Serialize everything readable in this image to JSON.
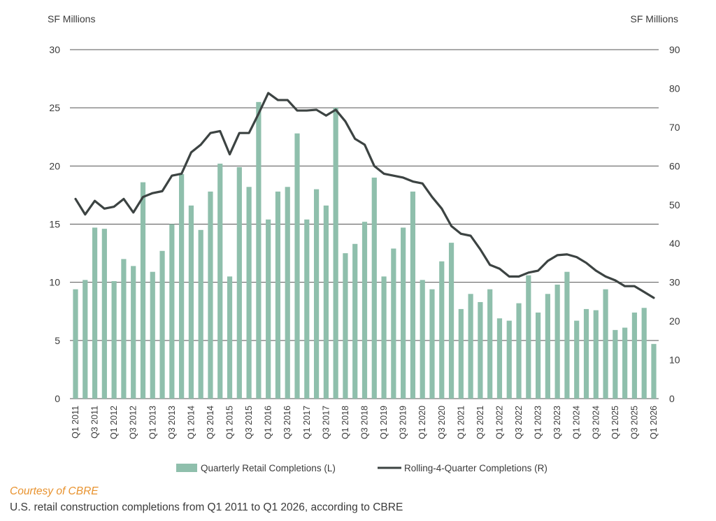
{
  "chart_data": {
    "type": "bar",
    "left_axis": {
      "label": "SF Millions",
      "ylim": [
        0,
        30
      ],
      "ticks": [
        "30",
        "25",
        "20",
        "15",
        "10",
        "5",
        "0"
      ]
    },
    "right_axis": {
      "label": "SF Millions",
      "ylim": [
        0,
        90
      ],
      "ticks": [
        "90",
        "80",
        "70",
        "60",
        "50",
        "40",
        "30",
        "20",
        "10",
        "0"
      ]
    },
    "grid": true,
    "legend_position": "bottom",
    "colors": {
      "bars": "#8fbfac",
      "line": "#3c4342",
      "grid": "#555555"
    },
    "x_tick_labels": [
      "Q1 2011",
      "Q3 2011",
      "Q1 2012",
      "Q3 2012",
      "Q1 2013",
      "Q3 2013",
      "Q1 2014",
      "Q3 2014",
      "Q1 2015",
      "Q3 2015",
      "Q1 2016",
      "Q3 2016",
      "Q1 2017",
      "Q3 2017",
      "Q1 2018",
      "Q3 2018",
      "Q1 2019",
      "Q3 2019",
      "Q1 2020",
      "Q3 2020",
      "Q1 2021",
      "Q3 2021",
      "Q1 2022",
      "Q3 2022",
      "Q1 2023",
      "Q3 2023",
      "Q1 2024",
      "Q3 2024",
      "Q1 2025",
      "Q3 2025",
      "Q1 2026"
    ],
    "series": [
      {
        "name": "Quarterly Retail Completions (L)",
        "type": "bar",
        "axis": "left",
        "values": [
          9.4,
          10.2,
          14.7,
          14.6,
          10.1,
          12.0,
          11.4,
          18.6,
          10.9,
          12.7,
          15.0,
          19.3,
          16.6,
          14.5,
          17.8,
          20.2,
          10.5,
          19.9,
          18.2,
          25.5,
          15.4,
          17.8,
          18.2,
          22.8,
          15.4,
          18.0,
          16.6,
          25.0,
          12.5,
          13.3,
          15.2,
          19.0,
          10.5,
          12.9,
          14.7,
          17.8,
          10.2,
          9.4,
          11.8,
          13.4,
          7.7,
          9.0,
          8.3,
          9.4,
          6.9,
          6.7,
          8.2,
          10.6,
          7.4,
          9.0,
          9.8,
          10.9,
          6.7,
          7.7,
          7.6,
          9.4,
          5.9,
          6.1,
          7.4,
          7.8,
          4.7
        ]
      },
      {
        "name": "Rolling-4-Quarter Completions (R)",
        "type": "line",
        "axis": "right",
        "values": [
          51.5,
          47.5,
          51.0,
          49.0,
          49.5,
          51.5,
          48.0,
          52.0,
          53.0,
          53.5,
          57.5,
          58.0,
          63.5,
          65.5,
          68.5,
          69.0,
          63.0,
          68.5,
          68.5,
          73.5,
          78.8,
          77.0,
          77.0,
          74.3,
          74.3,
          74.5,
          73.0,
          74.5,
          71.5,
          67.0,
          65.5,
          60.0,
          58.0,
          57.5,
          57.0,
          56.0,
          55.5,
          52.0,
          49.0,
          44.5,
          42.5,
          42.0,
          38.5,
          34.5,
          33.5,
          31.5,
          31.5,
          32.5,
          33.0,
          35.5,
          37.0,
          37.2,
          36.5,
          35.0,
          33.0,
          31.5,
          30.5,
          29.0,
          29.0,
          27.5,
          26.0
        ]
      }
    ]
  },
  "caption": {
    "credit": "Courtesy of CBRE",
    "description": "U.S. retail construction completions from Q1 2011 to Q1 2026, according to CBRE"
  }
}
